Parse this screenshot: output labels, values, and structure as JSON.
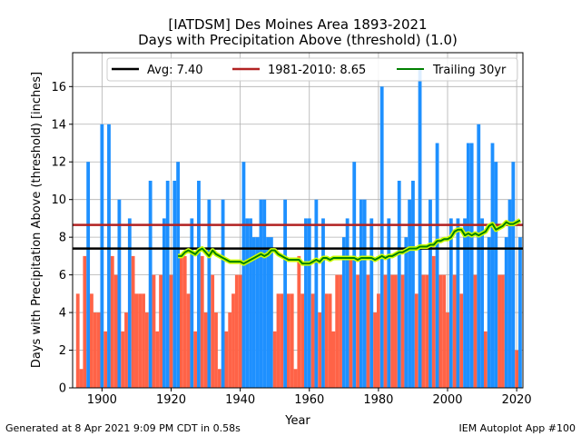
{
  "footer": {
    "left": "Generated at 8 Apr 2021 9:09 PM CDT in 0.58s",
    "right": "IEM Autoplot App #100"
  },
  "chart_data": {
    "type": "bar",
    "title": "[IATDSM] Des Moines Area 1893-2021",
    "subtitle": "Days with Precipitation Above (threshold) (1.0)",
    "xlabel": "Year",
    "ylabel": "Days with Precipitation Above (threshold) [inches]",
    "xlim": [
      1891.5,
      2021.8
    ],
    "ylim": [
      0,
      17.8
    ],
    "xticks": [
      1900,
      1920,
      1940,
      1960,
      1980,
      2000,
      2020
    ],
    "yticks": [
      0,
      2,
      4,
      6,
      8,
      10,
      12,
      14,
      16
    ],
    "grid": true,
    "legend_position": "top-right",
    "colors": {
      "above_avg": "#1e90ff",
      "below_avg": "#ff6347",
      "avg_line": "#000000",
      "normal_line": "#b22222",
      "trailing_line": "#008000",
      "trailing_halo": "#ccff00"
    },
    "x": [
      1893,
      1894,
      1895,
      1896,
      1897,
      1898,
      1899,
      1900,
      1901,
      1902,
      1903,
      1904,
      1905,
      1906,
      1907,
      1908,
      1909,
      1910,
      1911,
      1912,
      1913,
      1914,
      1915,
      1916,
      1917,
      1918,
      1919,
      1920,
      1921,
      1922,
      1923,
      1924,
      1925,
      1926,
      1927,
      1928,
      1929,
      1930,
      1931,
      1932,
      1933,
      1934,
      1935,
      1936,
      1937,
      1938,
      1939,
      1940,
      1941,
      1942,
      1943,
      1944,
      1945,
      1946,
      1947,
      1948,
      1949,
      1950,
      1951,
      1952,
      1953,
      1954,
      1955,
      1956,
      1957,
      1958,
      1959,
      1960,
      1961,
      1962,
      1963,
      1964,
      1965,
      1966,
      1967,
      1968,
      1969,
      1970,
      1971,
      1972,
      1973,
      1974,
      1975,
      1976,
      1977,
      1978,
      1979,
      1980,
      1981,
      1982,
      1983,
      1984,
      1985,
      1986,
      1987,
      1988,
      1989,
      1990,
      1991,
      1992,
      1993,
      1994,
      1995,
      1996,
      1997,
      1998,
      1999,
      2000,
      2001,
      2002,
      2003,
      2004,
      2005,
      2006,
      2007,
      2008,
      2009,
      2010,
      2011,
      2012,
      2013,
      2014,
      2015,
      2016,
      2017,
      2018,
      2019,
      2020,
      2021
    ],
    "values": [
      5,
      1,
      7,
      12,
      5,
      4,
      4,
      14,
      3,
      14,
      7,
      6,
      10,
      3,
      4,
      9,
      7,
      5,
      5,
      5,
      4,
      11,
      6,
      3,
      6,
      9,
      11,
      6,
      11,
      12,
      7,
      7,
      5,
      9,
      3,
      11,
      7,
      4,
      10,
      6,
      4,
      1,
      10,
      3,
      4,
      5,
      6,
      6,
      12,
      9,
      9,
      8,
      8,
      10,
      10,
      8,
      8,
      3,
      5,
      5,
      10,
      5,
      5,
      1,
      7,
      5,
      9,
      9,
      5,
      10,
      4,
      9,
      5,
      5,
      3,
      6,
      6,
      8,
      9,
      7,
      12,
      6,
      10,
      10,
      6,
      9,
      4,
      5,
      16,
      6,
      9,
      6,
      6,
      11,
      6,
      8,
      10,
      11,
      5,
      17,
      6,
      6,
      10,
      7,
      13,
      6,
      6,
      4,
      9,
      6,
      9,
      5,
      9,
      13,
      13,
      6,
      14,
      9,
      3,
      8,
      13,
      12,
      6,
      6,
      8,
      10,
      12,
      2,
      8
    ],
    "series": [
      {
        "name": "Avg: 7.40",
        "type": "hline",
        "value": 7.4
      },
      {
        "name": "1981-2010: 8.65",
        "type": "hline",
        "value": 8.65
      },
      {
        "name": "Trailing 30yr",
        "type": "line",
        "x": [
          1922,
          1923,
          1924,
          1925,
          1926,
          1927,
          1928,
          1929,
          1930,
          1931,
          1932,
          1933,
          1934,
          1935,
          1936,
          1937,
          1938,
          1939,
          1940,
          1941,
          1942,
          1943,
          1944,
          1945,
          1946,
          1947,
          1948,
          1949,
          1950,
          1951,
          1952,
          1953,
          1954,
          1955,
          1956,
          1957,
          1958,
          1959,
          1960,
          1961,
          1962,
          1963,
          1964,
          1965,
          1966,
          1967,
          1968,
          1969,
          1970,
          1971,
          1972,
          1973,
          1974,
          1975,
          1976,
          1977,
          1978,
          1979,
          1980,
          1981,
          1982,
          1983,
          1984,
          1985,
          1986,
          1987,
          1988,
          1989,
          1990,
          1991,
          1992,
          1993,
          1994,
          1995,
          1996,
          1997,
          1998,
          1999,
          2000,
          2001,
          2002,
          2003,
          2004,
          2005,
          2006,
          2007,
          2008,
          2009,
          2010,
          2011,
          2012,
          2013,
          2014,
          2015,
          2016,
          2017,
          2018,
          2019,
          2020,
          2021
        ],
        "values": [
          7.0,
          7.0,
          7.2,
          7.3,
          7.2,
          7.1,
          7.3,
          7.4,
          7.2,
          7.0,
          7.3,
          7.1,
          7.0,
          6.9,
          6.8,
          6.7,
          6.7,
          6.7,
          6.7,
          6.6,
          6.7,
          6.8,
          6.9,
          7.0,
          7.1,
          7.0,
          7.1,
          7.3,
          7.3,
          7.1,
          7.0,
          6.9,
          6.8,
          6.8,
          6.8,
          6.8,
          6.6,
          6.6,
          6.6,
          6.7,
          6.8,
          6.7,
          6.9,
          6.9,
          6.8,
          6.9,
          6.9,
          6.9,
          6.9,
          6.9,
          6.9,
          6.9,
          6.8,
          6.9,
          6.9,
          6.9,
          6.9,
          6.8,
          6.9,
          7.0,
          6.9,
          7.0,
          7.0,
          7.1,
          7.2,
          7.2,
          7.3,
          7.4,
          7.4,
          7.4,
          7.5,
          7.5,
          7.5,
          7.6,
          7.6,
          7.8,
          7.8,
          7.9,
          7.9,
          8.0,
          8.3,
          8.4,
          8.4,
          8.1,
          8.2,
          8.1,
          8.2,
          8.1,
          8.2,
          8.3,
          8.6,
          8.7,
          8.4,
          8.5,
          8.6,
          8.8,
          8.7,
          8.7,
          8.8,
          8.9
        ]
      }
    ]
  }
}
